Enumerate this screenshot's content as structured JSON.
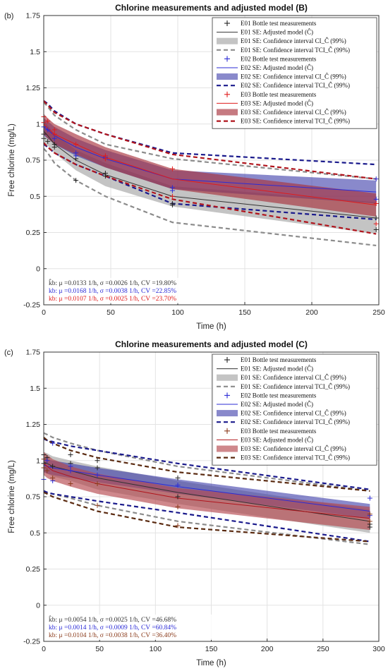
{
  "chart_data": [
    {
      "type": "line",
      "panel_label": "(b)",
      "title": "Chlorine measurements and adjusted model (B)",
      "xlabel": "Time (h)",
      "ylabel": "Free chlorine (mg/L)",
      "xlim": [
        0,
        250
      ],
      "ylim": [
        -0.25,
        1.75
      ],
      "xticks": [
        "0",
        "50",
        "100",
        "150",
        "200",
        "250"
      ],
      "yticks": [
        "-0.25",
        "0",
        "0.25",
        "0.5",
        "0.75",
        "1",
        "1.25",
        "1.5",
        "1.75"
      ],
      "grid": true,
      "legend_position": "top-right",
      "legend": [
        "E01 Bottle test measurements",
        "E01 SE: Adjusted model (Ĉ)",
        "E01 SE: Confidence interval CI_Ĉ (99%)",
        "E01 SE: Confidence interval TCI_Ĉ (99%)",
        "E02 Bottle test measurements",
        "E02 SE: Adjusted model (Ĉ)",
        "E02 SE: Confidence interval CI_Ĉ (99%)",
        "E02 SE: Confidence interval TCI_Ĉ (99%)",
        "E03 Bottle test measurements",
        "E03 SE: Adjusted model (Ĉ)",
        "E03 SE: Confidence interval CI_Ĉ (99%)",
        "E03 SE: Confidence interval TCI_Ĉ (99%)"
      ],
      "stats": [
        {
          "text": "k̂b: μ =0.0133 1/h, σ =0.0026 1/h, CV =19.80%",
          "color": "#333333"
        },
        {
          "text": "kb: μ =0.0168 1/h, σ =0.0038 1/h, CV =22.85%",
          "color": "#2b2bd6"
        },
        {
          "text": "kb: μ =0.0107 1/h, σ =0.0025 1/h, CV =23.70%",
          "color": "#e01b1b"
        }
      ],
      "series": [
        {
          "name": "E01",
          "colors": {
            "line": "#333333",
            "ci": "#b0b0b0",
            "ci_opacity": 0.75,
            "tci": "#8c8c8c",
            "marker": "#222222"
          },
          "x": [
            0,
            3,
            8,
            24,
            46,
            96,
            248
          ],
          "model": [
            0.95,
            0.92,
            0.86,
            0.75,
            0.65,
            0.5,
            0.35
          ],
          "ci_lower": [
            0.88,
            0.85,
            0.8,
            0.68,
            0.57,
            0.43,
            0.24
          ],
          "ci_upper": [
            1.02,
            0.99,
            0.93,
            0.82,
            0.73,
            0.57,
            0.46
          ],
          "tci_lower": [
            0.83,
            0.8,
            0.73,
            0.61,
            0.5,
            0.32,
            0.16
          ],
          "tci_upper": [
            1.15,
            1.12,
            1.06,
            0.96,
            0.86,
            0.76,
            0.62
          ],
          "measurements": [
            {
              "x": 0,
              "y": 0.93
            },
            {
              "x": 0,
              "y": 0.9
            },
            {
              "x": 3,
              "y": 0.88
            },
            {
              "x": 8,
              "y": 0.86
            },
            {
              "x": 8,
              "y": 0.84
            },
            {
              "x": 24,
              "y": 0.76
            },
            {
              "x": 24,
              "y": 0.61
            },
            {
              "x": 46,
              "y": 0.66
            },
            {
              "x": 46,
              "y": 0.64
            },
            {
              "x": 96,
              "y": 0.45
            },
            {
              "x": 96,
              "y": 0.44
            },
            {
              "x": 248,
              "y": 0.35
            },
            {
              "x": 248,
              "y": 0.27
            }
          ]
        },
        {
          "name": "E02",
          "colors": {
            "line": "#2b2bd6",
            "ci": "#3a3aa8",
            "ci_opacity": 0.6,
            "tci": "#1a1a8c",
            "marker": "#2b2bd6"
          },
          "x": [
            0,
            3,
            8,
            24,
            46,
            96,
            248
          ],
          "model": [
            0.98,
            0.96,
            0.92,
            0.84,
            0.76,
            0.62,
            0.53
          ],
          "ci_lower": [
            0.92,
            0.9,
            0.86,
            0.78,
            0.7,
            0.55,
            0.45
          ],
          "ci_upper": [
            1.04,
            1.02,
            0.98,
            0.9,
            0.82,
            0.68,
            0.61
          ],
          "tci_lower": [
            0.86,
            0.84,
            0.8,
            0.72,
            0.64,
            0.45,
            0.34
          ],
          "tci_upper": [
            1.16,
            1.14,
            1.09,
            1.0,
            0.93,
            0.8,
            0.72
          ],
          "measurements": [
            {
              "x": 0,
              "y": 0.98
            },
            {
              "x": 3,
              "y": 0.96
            },
            {
              "x": 8,
              "y": 0.9
            },
            {
              "x": 24,
              "y": 0.8
            },
            {
              "x": 24,
              "y": 0.78
            },
            {
              "x": 46,
              "y": 0.77
            },
            {
              "x": 96,
              "y": 0.56
            },
            {
              "x": 96,
              "y": 0.54
            },
            {
              "x": 248,
              "y": 0.62
            },
            {
              "x": 248,
              "y": 0.48
            }
          ]
        },
        {
          "name": "E03",
          "colors": {
            "line": "#e01b1b",
            "ci": "#a8323e",
            "ci_opacity": 0.65,
            "tci": "#b0141c",
            "marker": "#e01b1b"
          },
          "x": [
            0,
            3,
            8,
            24,
            46,
            96,
            248
          ],
          "model": [
            1.0,
            0.97,
            0.93,
            0.86,
            0.77,
            0.62,
            0.44
          ],
          "ci_lower": [
            0.93,
            0.9,
            0.86,
            0.79,
            0.7,
            0.55,
            0.36
          ],
          "ci_upper": [
            1.07,
            1.04,
            1.0,
            0.93,
            0.84,
            0.69,
            0.52
          ],
          "tci_lower": [
            0.87,
            0.84,
            0.8,
            0.72,
            0.64,
            0.48,
            0.24
          ],
          "tci_upper": [
            1.16,
            1.13,
            1.08,
            1.0,
            0.93,
            0.79,
            0.62
          ],
          "measurements": [
            {
              "x": 0,
              "y": 1.05
            },
            {
              "x": 0,
              "y": 1.01
            },
            {
              "x": 3,
              "y": 1.02
            },
            {
              "x": 8,
              "y": 0.96
            },
            {
              "x": 8,
              "y": 0.93
            },
            {
              "x": 24,
              "y": 0.86
            },
            {
              "x": 46,
              "y": 0.78
            },
            {
              "x": 46,
              "y": 0.76
            },
            {
              "x": 96,
              "y": 0.69
            },
            {
              "x": 96,
              "y": 0.5
            },
            {
              "x": 248,
              "y": 0.45
            },
            {
              "x": 248,
              "y": 0.31
            }
          ]
        }
      ]
    },
    {
      "type": "line",
      "panel_label": "(c)",
      "title": "Chlorine measurements and adjusted model (C)",
      "xlabel": "Time (h)",
      "ylabel": "Free chlorine (mg/L)",
      "xlim": [
        0,
        300
      ],
      "ylim": [
        -0.25,
        1.75
      ],
      "xticks": [
        "0",
        "50",
        "100",
        "150",
        "200",
        "250",
        "300"
      ],
      "yticks": [
        "-0.25",
        "0",
        "0.25",
        "0.5",
        "0.75",
        "1",
        "1.25",
        "1.5",
        "1.75"
      ],
      "grid": true,
      "legend_position": "top-right",
      "legend": [
        "E01 Bottle test measurements",
        "E01 SE: Adjusted model (Ĉ)",
        "E01 SE: Confidence interval CI_Ĉ (99%)",
        "E01 SE: Confidence interval TCI_Ĉ (99%)",
        "E02 Bottle test measurements",
        "E02 SE: Adjusted model (Ĉ)",
        "E02 SE: Confidence interval CI_Ĉ (99%)",
        "E02 SE: Confidence interval TCI_Ĉ (99%)",
        "E03 Bottle test measurements",
        "E03 SE: Adjusted model (Ĉ)",
        "E03 SE: Confidence interval CI_Ĉ (99%)",
        "E03 SE: Confidence interval TCI_Ĉ (99%)"
      ],
      "stats": [
        {
          "text": "k̂b: μ =0.0054 1/h, σ =0.0025 1/h, CV =46.68%",
          "color": "#333333"
        },
        {
          "text": "kb: μ =0.0014 1/h, σ =0.0009 1/h, CV =60.84%",
          "color": "#2b2bd6"
        },
        {
          "text": "kb: μ =0.0104 1/h, σ =0.0038 1/h, CV =36.40%",
          "color": "#8a3a1a"
        }
      ],
      "series": [
        {
          "name": "E01",
          "colors": {
            "line": "#333333",
            "ci": "#b0b0b0",
            "ci_opacity": 0.75,
            "tci": "#8c8c8c",
            "marker": "#222222"
          },
          "x": [
            0,
            3,
            8,
            24,
            48,
            120,
            292
          ],
          "model": [
            0.99,
            0.98,
            0.96,
            0.93,
            0.88,
            0.78,
            0.58
          ],
          "ci_lower": [
            0.92,
            0.91,
            0.89,
            0.86,
            0.8,
            0.7,
            0.5
          ],
          "ci_upper": [
            1.06,
            1.05,
            1.03,
            1.0,
            0.96,
            0.86,
            0.66
          ],
          "tci_lower": [
            0.79,
            0.78,
            0.77,
            0.74,
            0.69,
            0.58,
            0.42
          ],
          "tci_upper": [
            1.19,
            1.18,
            1.16,
            1.12,
            1.07,
            0.96,
            0.79
          ],
          "measurements": [
            {
              "x": 0,
              "y": 1.04
            },
            {
              "x": 0,
              "y": 0.98
            },
            {
              "x": 3,
              "y": 1.02
            },
            {
              "x": 8,
              "y": 0.96
            },
            {
              "x": 24,
              "y": 1.04
            },
            {
              "x": 24,
              "y": 0.98
            },
            {
              "x": 48,
              "y": 1.0
            },
            {
              "x": 48,
              "y": 0.95
            },
            {
              "x": 120,
              "y": 0.88
            },
            {
              "x": 120,
              "y": 0.75
            },
            {
              "x": 292,
              "y": 0.56
            },
            {
              "x": 292,
              "y": 0.54
            }
          ]
        },
        {
          "name": "E02",
          "colors": {
            "line": "#2b2bd6",
            "ci": "#3a3aa8",
            "ci_opacity": 0.6,
            "tci": "#1a1a8c",
            "marker": "#2b2bd6"
          },
          "x": [
            0,
            3,
            8,
            24,
            48,
            120,
            292
          ],
          "model": [
            0.97,
            0.96,
            0.95,
            0.93,
            0.9,
            0.82,
            0.65
          ],
          "ci_lower": [
            0.92,
            0.91,
            0.9,
            0.88,
            0.85,
            0.77,
            0.6
          ],
          "ci_upper": [
            1.02,
            1.01,
            1.0,
            0.98,
            0.95,
            0.87,
            0.7
          ],
          "tci_lower": [
            0.79,
            0.78,
            0.77,
            0.75,
            0.72,
            0.64,
            0.44
          ],
          "tci_upper": [
            1.15,
            1.14,
            1.13,
            1.1,
            1.07,
            0.98,
            0.8
          ],
          "measurements": [
            {
              "x": 0,
              "y": 0.87
            },
            {
              "x": 3,
              "y": 1.0
            },
            {
              "x": 8,
              "y": 1.12
            },
            {
              "x": 8,
              "y": 0.86
            },
            {
              "x": 24,
              "y": 0.93
            },
            {
              "x": 24,
              "y": 0.96
            },
            {
              "x": 48,
              "y": 0.9
            },
            {
              "x": 120,
              "y": 0.83
            },
            {
              "x": 292,
              "y": 0.74
            },
            {
              "x": 292,
              "y": 0.62
            }
          ]
        },
        {
          "name": "E03",
          "colors": {
            "line": "#b0141c",
            "ci": "#b5484e",
            "ci_opacity": 0.65,
            "tci": "#5a2a10",
            "marker": "#8a3a1a"
          },
          "x": [
            0,
            3,
            8,
            24,
            48,
            120,
            292
          ],
          "model": [
            0.98,
            0.96,
            0.93,
            0.89,
            0.84,
            0.74,
            0.6
          ],
          "ci_lower": [
            0.9,
            0.88,
            0.86,
            0.82,
            0.77,
            0.67,
            0.52
          ],
          "ci_upper": [
            1.06,
            1.04,
            1.01,
            0.96,
            0.91,
            0.81,
            0.68
          ],
          "tci_lower": [
            0.78,
            0.77,
            0.75,
            0.71,
            0.65,
            0.54,
            0.44
          ],
          "tci_upper": [
            1.16,
            1.14,
            1.12,
            1.07,
            1.02,
            0.92,
            0.79
          ],
          "measurements": [
            {
              "x": 0,
              "y": 1.01
            },
            {
              "x": 0,
              "y": 0.95
            },
            {
              "x": 3,
              "y": 0.93
            },
            {
              "x": 8,
              "y": 0.88
            },
            {
              "x": 24,
              "y": 0.84
            },
            {
              "x": 48,
              "y": 0.84
            },
            {
              "x": 48,
              "y": 0.69
            },
            {
              "x": 120,
              "y": 0.68
            },
            {
              "x": 120,
              "y": 0.55
            },
            {
              "x": 292,
              "y": 0.63
            },
            {
              "x": 292,
              "y": 0.58
            }
          ]
        }
      ]
    }
  ]
}
